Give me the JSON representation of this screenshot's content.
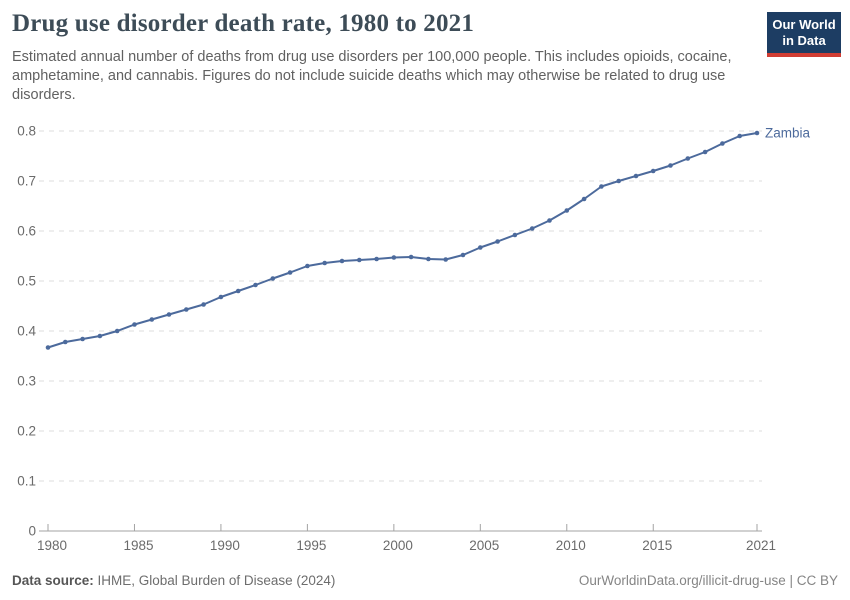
{
  "header": {
    "title": "Drug use disorder death rate, 1980 to 2021",
    "subtitle": "Estimated annual number of deaths from drug use disorders per 100,000 people. This includes opioids, cocaine, amphetamine, and cannabis. Figures do not include suicide deaths which may otherwise be related to drug use disorders.",
    "logo": {
      "line1": "Our World",
      "line2": "in Data",
      "bg_color": "#1d3d63",
      "accent_color": "#d13d33"
    }
  },
  "chart_data": {
    "type": "line",
    "title": "Drug use disorder death rate, 1980 to 2021",
    "xlabel": "",
    "ylabel": "",
    "ylim": [
      0,
      0.8
    ],
    "y_ticks": [
      0,
      0.1,
      0.2,
      0.3,
      0.4,
      0.5,
      0.6,
      0.7,
      0.8
    ],
    "x_ticks": [
      1980,
      1985,
      1990,
      1995,
      2000,
      2005,
      2010,
      2015,
      2021
    ],
    "grid": "horizontal dashed",
    "legend_position": "end-of-line label",
    "series": [
      {
        "name": "Zambia",
        "color": "#4c6a9c",
        "x": [
          1980,
          1981,
          1982,
          1983,
          1984,
          1985,
          1986,
          1987,
          1988,
          1989,
          1990,
          1991,
          1992,
          1993,
          1994,
          1995,
          1996,
          1997,
          1998,
          1999,
          2000,
          2001,
          2002,
          2003,
          2004,
          2005,
          2006,
          2007,
          2008,
          2009,
          2010,
          2011,
          2012,
          2013,
          2014,
          2015,
          2016,
          2017,
          2018,
          2019,
          2020,
          2021
        ],
        "values": [
          0.367,
          0.378,
          0.384,
          0.39,
          0.4,
          0.413,
          0.423,
          0.433,
          0.443,
          0.453,
          0.468,
          0.48,
          0.492,
          0.505,
          0.517,
          0.53,
          0.536,
          0.54,
          0.542,
          0.544,
          0.547,
          0.548,
          0.544,
          0.543,
          0.552,
          0.567,
          0.579,
          0.592,
          0.605,
          0.621,
          0.641,
          0.664,
          0.689,
          0.7,
          0.71,
          0.72,
          0.731,
          0.745,
          0.758,
          0.775,
          0.79,
          0.796
        ]
      }
    ],
    "axis_color": "#a3a3a3",
    "gridline_color": "#dedede",
    "tick_label_color": "#6b6b6b"
  },
  "footer": {
    "source_label": "Data source:",
    "source_text": " IHME, Global Burden of Disease (2024)",
    "credit": "OurWorldinData.org/illicit-drug-use | CC BY"
  }
}
